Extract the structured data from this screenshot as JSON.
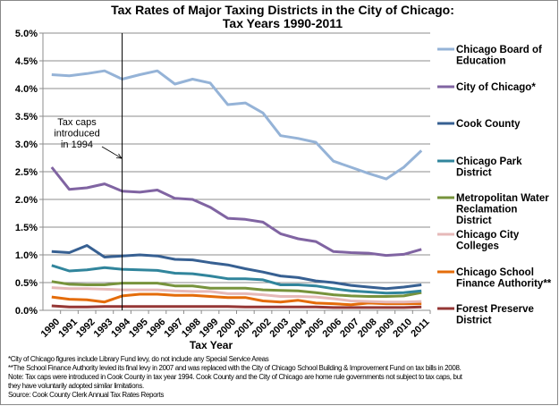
{
  "chart_data": {
    "type": "line",
    "title": [
      "Tax Rates of Major Taxing Districts in the City of Chicago:",
      "Tax Years 1990-2011"
    ],
    "xlabel": "Tax Year",
    "ylabel": "",
    "ylim": [
      0,
      5.0
    ],
    "y_ticks": [
      "0.0%",
      "0.5%",
      "1.0%",
      "1.5%",
      "2.0%",
      "2.5%",
      "3.0%",
      "3.5%",
      "4.0%",
      "4.5%",
      "5.0%"
    ],
    "grid": true,
    "legend_placement": "right",
    "categories": [
      "1990",
      "1991",
      "1992",
      "1993",
      "1994",
      "1995",
      "1996",
      "1997",
      "1998",
      "1999",
      "2000",
      "2001",
      "2002",
      "2003",
      "2004",
      "2005",
      "2006",
      "2007",
      "2008",
      "2009",
      "2010",
      "2011"
    ],
    "series": [
      {
        "name": [
          "Chicago Board of",
          "Education"
        ],
        "color": "#95b3d7",
        "values": [
          4.25,
          4.23,
          4.27,
          4.32,
          4.17,
          4.25,
          4.32,
          4.08,
          4.17,
          4.1,
          3.71,
          3.74,
          3.56,
          3.15,
          3.1,
          3.03,
          2.69,
          2.58,
          2.47,
          2.37,
          2.58,
          2.88
        ]
      },
      {
        "name": [
          "City of Chicago*"
        ],
        "color": "#8064a2",
        "values": [
          2.58,
          2.18,
          2.21,
          2.28,
          2.15,
          2.13,
          2.17,
          2.02,
          2.0,
          1.86,
          1.66,
          1.64,
          1.59,
          1.38,
          1.29,
          1.24,
          1.06,
          1.04,
          1.03,
          0.99,
          1.01,
          1.1
        ]
      },
      {
        "name": [
          "Cook County"
        ],
        "color": "#376092",
        "values": [
          1.06,
          1.04,
          1.17,
          0.96,
          0.98,
          1.0,
          0.98,
          0.92,
          0.91,
          0.86,
          0.82,
          0.75,
          0.69,
          0.62,
          0.59,
          0.53,
          0.5,
          0.45,
          0.42,
          0.39,
          0.42,
          0.46
        ]
      },
      {
        "name": [
          "Chicago Park",
          "District"
        ],
        "color": "#31859c",
        "values": [
          0.81,
          0.71,
          0.73,
          0.77,
          0.74,
          0.73,
          0.72,
          0.67,
          0.66,
          0.62,
          0.57,
          0.57,
          0.55,
          0.46,
          0.46,
          0.44,
          0.39,
          0.35,
          0.33,
          0.31,
          0.32,
          0.35
        ]
      },
      {
        "name": [
          "Metropolitan Water",
          "Reclamation",
          "District"
        ],
        "color": "#77933c",
        "values": [
          0.52,
          0.47,
          0.46,
          0.46,
          0.49,
          0.49,
          0.49,
          0.44,
          0.44,
          0.4,
          0.4,
          0.4,
          0.37,
          0.36,
          0.35,
          0.32,
          0.28,
          0.26,
          0.25,
          0.25,
          0.26,
          0.32
        ]
      },
      {
        "name": [
          "Chicago City",
          "Colleges"
        ],
        "color": "#e6b9b8",
        "values": [
          0.41,
          0.39,
          0.39,
          0.38,
          0.37,
          0.37,
          0.37,
          0.35,
          0.34,
          0.34,
          0.3,
          0.3,
          0.28,
          0.25,
          0.25,
          0.24,
          0.21,
          0.17,
          0.16,
          0.15,
          0.15,
          0.16
        ]
      },
      {
        "name": [
          "Chicago School",
          "Finance Authority**"
        ],
        "color": "#e46c0a",
        "values": [
          0.24,
          0.2,
          0.19,
          0.15,
          0.26,
          0.29,
          0.29,
          0.27,
          0.27,
          0.25,
          0.23,
          0.23,
          0.17,
          0.15,
          0.18,
          0.13,
          0.12,
          0.1,
          0.13,
          0.12,
          0.12,
          0.12
        ]
      },
      {
        "name": [
          "Forest Preserve",
          "District"
        ],
        "color": "#953735",
        "values": [
          0.08,
          0.06,
          0.06,
          0.07,
          0.07,
          0.07,
          0.07,
          0.07,
          0.07,
          0.07,
          0.07,
          0.06,
          0.06,
          0.06,
          0.06,
          0.06,
          0.05,
          0.05,
          0.05,
          0.05,
          0.05,
          0.06
        ]
      }
    ],
    "annotation": {
      "text": [
        "Tax caps",
        "introduced",
        "in 1994"
      ],
      "year": "1994"
    },
    "footnotes": [
      "*City of Chicago figures include Library Fund levy, do not include  any Special Service Areas",
      "**The School Finance Authority levied its final levy in 2007 and was replaced with the City of Chicago School Building & Improvement Fund on tax bills in 2008.",
      "Note: Tax caps were introduced in Cook County in tax year 1994. Cook County and the City of Chicago are home rule governments not subject to tax caps, but",
      "they have voluntarily adopted similar limitations.",
      "Source: Cook County Clerk Annual Tax Rates Reports"
    ]
  }
}
